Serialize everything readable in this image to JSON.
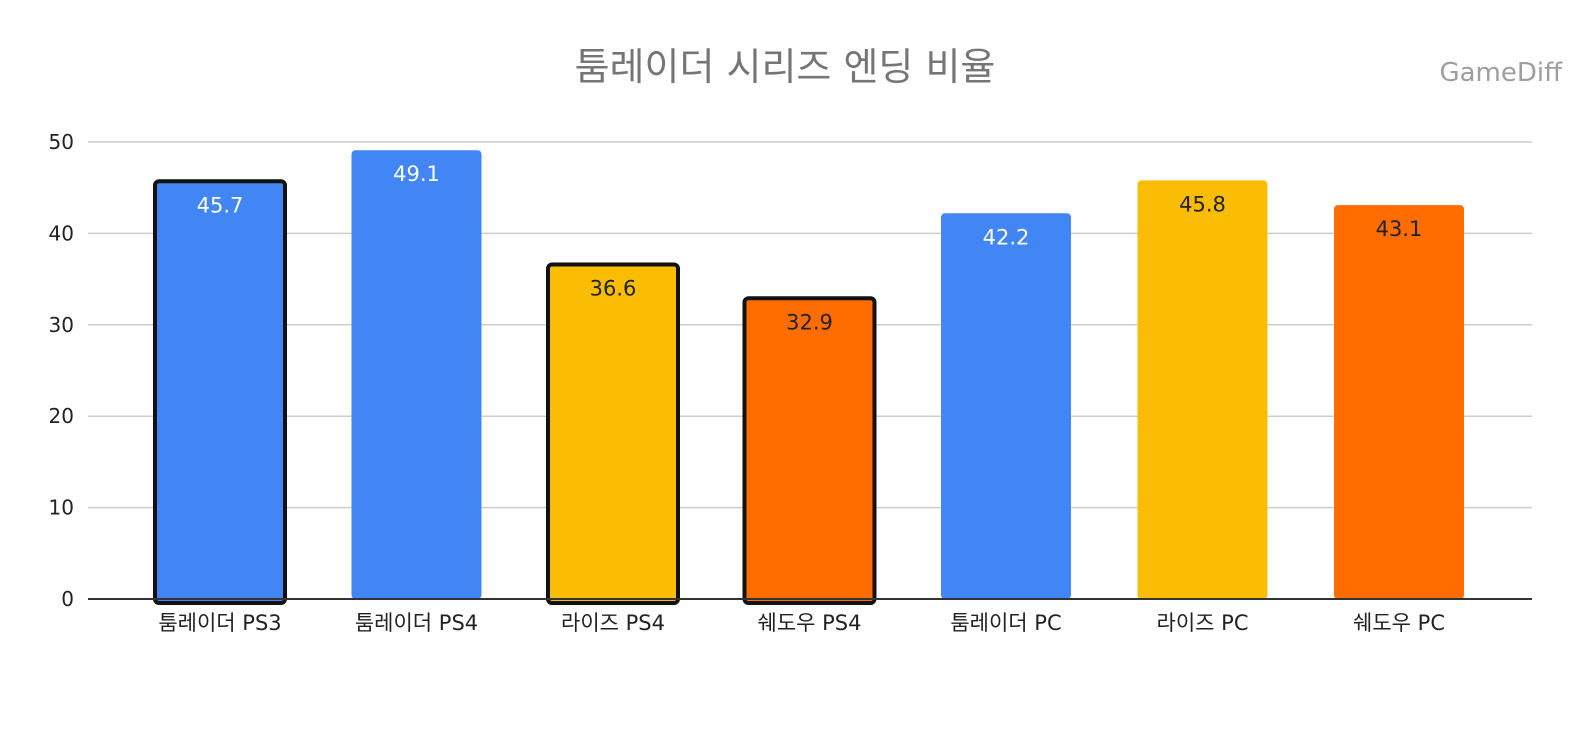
{
  "chart_data": {
    "type": "bar",
    "title": "툼레이더 시리즈 엔딩 비율",
    "watermark": "GameDiff",
    "xlabel": "",
    "ylabel": "",
    "ylim": [
      0,
      50
    ],
    "yticks": [
      0,
      10,
      20,
      30,
      40,
      50
    ],
    "grid": true,
    "categories": [
      "툼레이더 PS3",
      "툼레이더 PS4",
      "라이즈 PS4",
      "쉐도우 PS4",
      "툼레이더 PC",
      "라이즈 PC",
      "쉐도우 PC"
    ],
    "values": [
      45.7,
      49.1,
      36.6,
      32.9,
      42.2,
      45.8,
      43.1
    ],
    "value_labels": [
      "45.7",
      "49.1",
      "36.6",
      "32.9",
      "42.2",
      "45.8",
      "43.1"
    ],
    "colors": [
      "#4285f4",
      "#4285f4",
      "#fbbc04",
      "#ff6d01",
      "#4285f4",
      "#fbbc04",
      "#ff6d01"
    ],
    "label_colors": [
      "#ffffff",
      "#ffffff",
      "#222222",
      "#222222",
      "#ffffff",
      "#222222",
      "#222222"
    ],
    "outlined": [
      true,
      false,
      true,
      true,
      false,
      false,
      false
    ]
  }
}
